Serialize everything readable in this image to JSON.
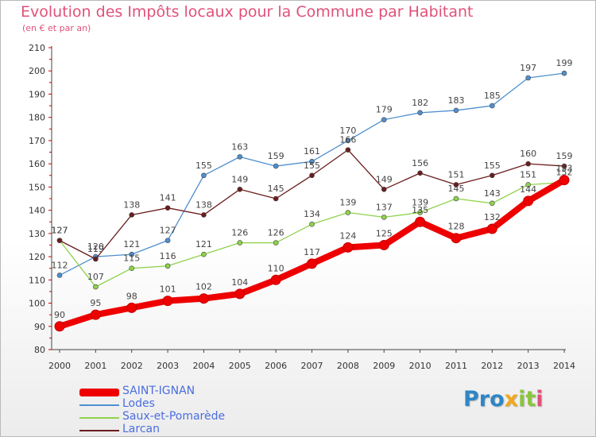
{
  "title": "Evolution des Impôts locaux pour la Commune par Habitant",
  "subtitle": "(en € et par an)",
  "logo": [
    "Pro",
    "x",
    "it",
    "i"
  ],
  "chart_data": {
    "type": "line",
    "title": "Evolution des Impôts locaux pour la Commune par Habitant",
    "subtitle": "(en € et par an)",
    "x": [
      "2000",
      "2001",
      "2002",
      "2003",
      "2004",
      "2005",
      "2006",
      "2007",
      "2008",
      "2009",
      "2010",
      "2011",
      "2012",
      "2013",
      "2014"
    ],
    "ylim": [
      80,
      210
    ],
    "yticks": [
      80,
      90,
      100,
      110,
      120,
      130,
      140,
      150,
      160,
      170,
      180,
      190,
      200,
      210
    ],
    "grid": false,
    "legend_position": "bottom-left",
    "series": [
      {
        "name": "SAINT-IGNAN",
        "color": "#ee0000",
        "values": [
          90,
          95,
          98,
          101,
          102,
          104,
          110,
          117,
          124,
          125,
          135,
          128,
          132,
          144,
          153
        ]
      },
      {
        "name": "Lodes",
        "color": "#4f8fcf",
        "values": [
          112,
          120,
          121,
          127,
          155,
          163,
          159,
          161,
          170,
          179,
          182,
          183,
          185,
          197,
          199
        ]
      },
      {
        "name": "Saux-et-Pomarède",
        "color": "#8fd24c",
        "values": [
          127,
          107,
          115,
          116,
          121,
          126,
          126,
          134,
          139,
          137,
          139,
          145,
          143,
          151,
          152
        ]
      },
      {
        "name": "Larcan",
        "color": "#6b1d1d",
        "values": [
          127,
          119,
          138,
          141,
          138,
          149,
          145,
          155,
          166,
          149,
          156,
          151,
          155,
          160,
          159
        ]
      }
    ]
  }
}
